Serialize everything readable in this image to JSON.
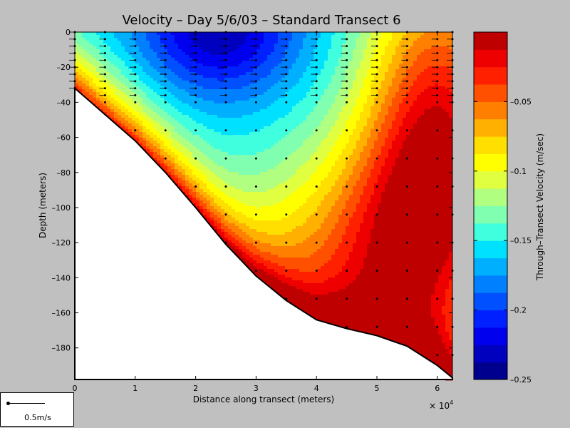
{
  "chart_data": {
    "type": "heatmap",
    "title": "Velocity – Day 5/6/03 – Standard Transect 6",
    "xlabel": "Distance along transect (meters)",
    "ylabel": "Depth (meters)",
    "x_exponent_label": "× 10",
    "x_exponent_power": "4",
    "xlim": [
      0,
      62500
    ],
    "ylim": [
      -198,
      0
    ],
    "xticks": [
      {
        "value": 0,
        "label": "0"
      },
      {
        "value": 10000,
        "label": "1"
      },
      {
        "value": 20000,
        "label": "2"
      },
      {
        "value": 30000,
        "label": "3"
      },
      {
        "value": 40000,
        "label": "4"
      },
      {
        "value": 50000,
        "label": "5"
      },
      {
        "value": 60000,
        "label": "6"
      }
    ],
    "yticks": [
      0,
      -20,
      -40,
      -60,
      -80,
      -100,
      -120,
      -140,
      -160,
      -180
    ],
    "colorbar": {
      "label": "Through–Transect Velocity (m/sec)",
      "range": [
        -0.25,
        0.0
      ],
      "levels": 20,
      "ticks": [
        {
          "value": -0.05,
          "label": "–0.05"
        },
        {
          "value": -0.1,
          "label": "–0.1"
        },
        {
          "value": -0.15,
          "label": "–0.15"
        },
        {
          "value": -0.2,
          "label": "–0.2"
        },
        {
          "value": -0.25,
          "label": "–0.25"
        }
      ]
    },
    "colors": [
      "#00008f",
      "#0000bf",
      "#0000ef",
      "#0020ff",
      "#0050ff",
      "#0080ff",
      "#00b0ff",
      "#00e0ff",
      "#40ffdf",
      "#80ffb0",
      "#b0ff80",
      "#dfff40",
      "#ffff00",
      "#ffdf00",
      "#ffb000",
      "#ff8000",
      "#ff5000",
      "#ff2000",
      "#ef0000",
      "#bf0000"
    ],
    "bottom_profile": [
      [
        0,
        -32
      ],
      [
        5000,
        -47
      ],
      [
        10000,
        -62
      ],
      [
        15000,
        -80
      ],
      [
        20000,
        -100
      ],
      [
        25000,
        -121
      ],
      [
        30000,
        -139
      ],
      [
        35000,
        -153
      ],
      [
        40000,
        -164
      ],
      [
        45000,
        -169
      ],
      [
        50000,
        -173
      ],
      [
        55000,
        -179
      ],
      [
        60000,
        -190
      ],
      [
        62500,
        -197
      ]
    ],
    "station_x": [
      0,
      5000,
      10000,
      15000,
      20000,
      25000,
      30000,
      35000,
      40000,
      45000,
      50000,
      55000,
      60000,
      62500
    ],
    "station_depth_spacing": 4,
    "velocity_field_description": "Strongest negative flow (~ -0.24 m/s) in surface core near x = 20000–30000 m; flow weakens toward bottom and east side (~ -0.02 m/s)."
  },
  "legend_box": {
    "scale_label": "0.5m/s"
  }
}
